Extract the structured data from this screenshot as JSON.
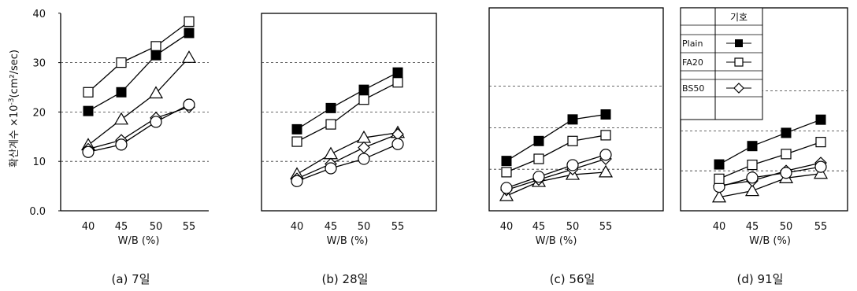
{
  "ylabel_prefix": "확산계수 ×10",
  "ylabel_sup": "-3",
  "ylabel_unit": "(cm²/sec)",
  "yticks": [
    "0.0",
    "10",
    "20",
    "30",
    "40"
  ],
  "legend": {
    "header": "기호",
    "items": [
      "Plain",
      "FA20",
      "BS50"
    ]
  },
  "chart_data": [
    {
      "type": "line",
      "caption": "(a) 7일",
      "xlabel": "W/B (%)",
      "x": [
        40,
        45,
        50,
        55
      ],
      "ylim": [
        0,
        40
      ],
      "grid": "dashed-horizontal",
      "series": [
        {
          "name": "Plain",
          "marker": "filled-square",
          "values": [
            20.2,
            24.0,
            31.5,
            36.0
          ]
        },
        {
          "name": "FA20",
          "marker": "open-square",
          "values": [
            24.0,
            30.0,
            33.3,
            38.3
          ]
        },
        {
          "marker": "triangle",
          "values": [
            13.3,
            18.5,
            23.8,
            31.0
          ]
        },
        {
          "name": "BS50",
          "marker": "diamond",
          "values": [
            12.5,
            14.3,
            18.8,
            21.0
          ]
        },
        {
          "marker": "circle",
          "values": [
            11.9,
            13.4,
            18.0,
            21.5
          ]
        }
      ]
    },
    {
      "type": "line",
      "caption": "(b) 28일",
      "xlabel": "W/B (%)",
      "x": [
        40,
        45,
        50,
        55
      ],
      "ylim": [
        0,
        40
      ],
      "grid": "dashed-horizontal",
      "series": [
        {
          "name": "Plain",
          "marker": "filled-square",
          "values": [
            16.5,
            20.8,
            24.5,
            28.0
          ]
        },
        {
          "name": "FA20",
          "marker": "open-square",
          "values": [
            14.0,
            17.5,
            22.5,
            26.0
          ]
        },
        {
          "marker": "triangle",
          "values": [
            7.4,
            11.5,
            14.8,
            15.8
          ]
        },
        {
          "name": "BS50",
          "marker": "diamond",
          "values": [
            6.5,
            9.5,
            12.8,
            15.5
          ]
        },
        {
          "marker": "circle",
          "values": [
            6.0,
            8.6,
            10.5,
            13.5
          ]
        }
      ]
    },
    {
      "type": "line",
      "caption": "(c) 56일",
      "xlabel": "W/B (%)",
      "x": [
        40,
        45,
        50,
        55
      ],
      "ylim": [
        0,
        40
      ],
      "grid": "dashed-horizontal",
      "series": [
        {
          "name": "Plain",
          "marker": "filled-square",
          "values": [
            12.0,
            16.8,
            22.0,
            23.2
          ]
        },
        {
          "name": "FA20",
          "marker": "open-square",
          "values": [
            9.3,
            12.5,
            16.8,
            18.2
          ]
        },
        {
          "marker": "triangle",
          "values": [
            3.6,
            7.0,
            8.7,
            9.3
          ]
        },
        {
          "name": "BS50",
          "marker": "diamond",
          "values": [
            5.0,
            7.5,
            10.0,
            12.5
          ]
        },
        {
          "marker": "circle",
          "values": [
            5.5,
            8.2,
            11.0,
            13.5
          ]
        }
      ]
    },
    {
      "type": "line",
      "caption": "(d) 91일",
      "xlabel": "W/B (%)",
      "x": [
        40,
        45,
        50,
        55
      ],
      "ylim": [
        0,
        40
      ],
      "grid": "dashed-horizontal",
      "series": [
        {
          "name": "Plain",
          "marker": "filled-square",
          "values": [
            11.6,
            16.2,
            19.5,
            22.8
          ]
        },
        {
          "name": "FA20",
          "marker": "open-square",
          "values": [
            8.0,
            11.5,
            14.2,
            17.2
          ]
        },
        {
          "marker": "triangle",
          "values": [
            3.4,
            5.0,
            8.2,
            9.3
          ]
        },
        {
          "name": "BS50",
          "marker": "diamond",
          "values": [
            6.3,
            7.5,
            10.0,
            12.0
          ]
        },
        {
          "marker": "circle",
          "values": [
            6.0,
            8.3,
            9.5,
            11.0
          ]
        }
      ]
    }
  ]
}
